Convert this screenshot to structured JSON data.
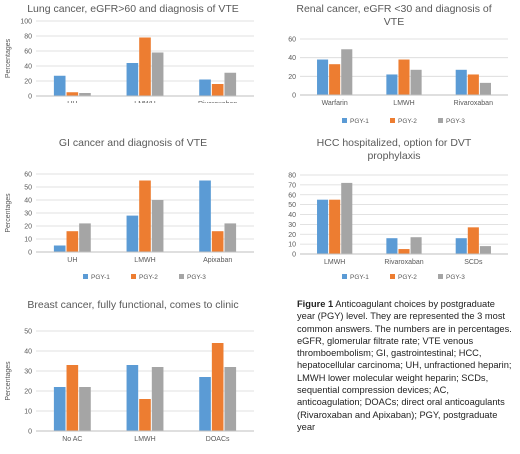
{
  "colors": {
    "PGY-1": "#5B9BD5",
    "PGY-2": "#ED7D31",
    "PGY-3": "#A5A5A5"
  },
  "ylabel": "Percentages",
  "chart_data": [
    {
      "type": "bar",
      "title": "Lung cancer, eGFR>60 and diagnosis of VTE",
      "ylabel": "Percentages",
      "categories": [
        "UH",
        "LMWH",
        "Rivaroxaban"
      ],
      "series": [
        {
          "name": "PGY-1",
          "values": [
            27,
            44,
            22
          ]
        },
        {
          "name": "PGY-2",
          "values": [
            5,
            78,
            16
          ]
        },
        {
          "name": "PGY-3",
          "values": [
            4,
            58,
            31
          ]
        }
      ],
      "ylim": [
        0,
        100
      ],
      "yticks": [
        0,
        20,
        40,
        60,
        80,
        100
      ],
      "grid": true,
      "legend": "bottom"
    },
    {
      "type": "bar",
      "title": "Renal cancer, eGFR <30 and diagnosis of VTE",
      "ylabel": "",
      "categories": [
        "Warfarin",
        "LMWH",
        "Rivaroxaban"
      ],
      "series": [
        {
          "name": "PGY-1",
          "values": [
            38,
            22,
            27
          ]
        },
        {
          "name": "PGY-2",
          "values": [
            33,
            38,
            22
          ]
        },
        {
          "name": "PGY-3",
          "values": [
            49,
            27,
            13
          ]
        }
      ],
      "ylim": [
        0,
        60
      ],
      "yticks": [
        0,
        20,
        40,
        60
      ],
      "grid": true,
      "legend": "bottom"
    },
    {
      "type": "bar",
      "title": "GI cancer and diagnosis of VTE",
      "ylabel": "Percentages",
      "categories": [
        "UH",
        "LMWH",
        "Apixaban"
      ],
      "series": [
        {
          "name": "PGY-1",
          "values": [
            5,
            28,
            55
          ]
        },
        {
          "name": "PGY-2",
          "values": [
            16,
            55,
            16
          ]
        },
        {
          "name": "PGY-3",
          "values": [
            22,
            40,
            22
          ]
        }
      ],
      "ylim": [
        0,
        60
      ],
      "yticks": [
        0,
        10,
        20,
        30,
        40,
        50,
        60
      ],
      "grid": true,
      "legend": "bottom"
    },
    {
      "type": "bar",
      "title": "HCC hospitalized, option for DVT prophylaxis",
      "ylabel": "",
      "categories": [
        "LMWH",
        "Rivaroxaban",
        "SCDs"
      ],
      "series": [
        {
          "name": "PGY-1",
          "values": [
            55,
            16,
            16
          ]
        },
        {
          "name": "PGY-2",
          "values": [
            55,
            5,
            27
          ]
        },
        {
          "name": "PGY-3",
          "values": [
            72,
            17,
            8
          ]
        }
      ],
      "ylim": [
        0,
        80
      ],
      "yticks": [
        0,
        10,
        20,
        30,
        40,
        50,
        60,
        70,
        80
      ],
      "grid": true,
      "legend": "bottom"
    },
    {
      "type": "bar",
      "title": "Breast cancer, fully functional, comes to clinic",
      "ylabel": "Percentages",
      "categories": [
        "No AC",
        "LMWH",
        "DOACs"
      ],
      "series": [
        {
          "name": "PGY-1",
          "values": [
            22,
            33,
            27
          ]
        },
        {
          "name": "PGY-2",
          "values": [
            33,
            16,
            44
          ]
        },
        {
          "name": "PGY-3",
          "values": [
            22,
            32,
            32
          ]
        }
      ],
      "ylim": [
        0,
        50
      ],
      "yticks": [
        0,
        10,
        20,
        30,
        40,
        50
      ],
      "grid": true,
      "legend": "bottom"
    }
  ],
  "caption": {
    "label": "Figure 1",
    "text": " Anticoagulant choices by postgraduate year (PGY) level. They are represented the 3 most common answers. The numbers are in percentages. eGFR, glomerular filtrate rate; VTE venous thromboembolism; GI, gastrointestinal; HCC, hepatocellular carcinoma; UH, unfractioned heparin; LMWH lower molecular weight heparin; SCDs, sequential compression devices; AC, anticoagulation; DOACs; direct oral anticoagulants (Rivaroxaban and Apixaban); PGY, postgraduate year"
  }
}
